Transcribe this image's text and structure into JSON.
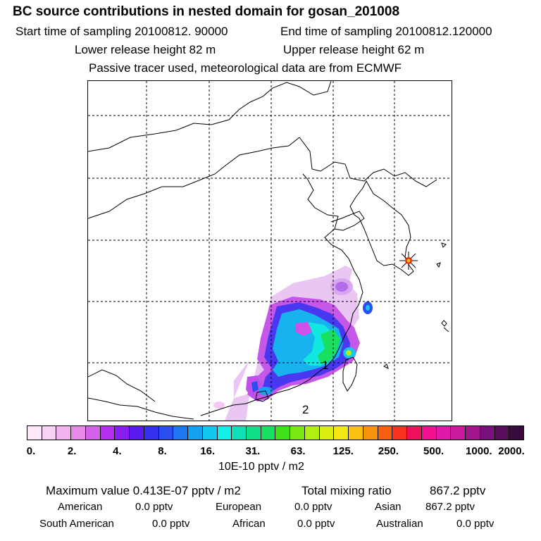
{
  "header": {
    "title": "BC  source contributions in nested domain for gosan_201008",
    "start_time": "Start time of sampling 20100812. 90000",
    "end_time": "End time of sampling 20100812.120000",
    "lower_height": "Lower release height   82 m",
    "upper_height": "Upper release height   62 m",
    "tracer_note": "Passive tracer used, meteorological data are from ECMWF"
  },
  "map": {
    "label_1": "1",
    "label_2": "2",
    "receptor_marker": "star-marker-icon"
  },
  "colorbar": {
    "colors": [
      "#fde8fb",
      "#f8d1f6",
      "#f3b3f0",
      "#e78ae9",
      "#d462e8",
      "#b62fee",
      "#8a1ef0",
      "#5a1aef",
      "#3530f0",
      "#2a4fee",
      "#1e77f2",
      "#16a0f0",
      "#12c8ef",
      "#12f0e8",
      "#10e0b8",
      "#10e08a",
      "#18e060",
      "#40e018",
      "#7ae812",
      "#b0ef10",
      "#d8ef10",
      "#f0e810",
      "#f8c010",
      "#f89410",
      "#f86010",
      "#f83020",
      "#f01060",
      "#f01090",
      "#e018a8",
      "#c81a9c",
      "#a0168c",
      "#7a107a",
      "#580e5a",
      "#3a0a3e"
    ],
    "ticks": [
      "0.",
      "2.",
      "4.",
      "8.",
      "16.",
      "31.",
      "63.",
      "125.",
      "250.",
      "500.",
      "1000.",
      "2000."
    ],
    "unit_label": "10E-10 pptv / m2"
  },
  "stats": {
    "max_label": "Maximum value  0.413E-07 pptv / m2",
    "total_label": "Total mixing ratio",
    "total_value": "867.2 pptv"
  },
  "contributions": [
    {
      "name": "American",
      "value": "0.0 pptv"
    },
    {
      "name": "European",
      "value": "0.0 pptv"
    },
    {
      "name": "Asian",
      "value": "867.2 pptv"
    },
    {
      "name": "South American",
      "value": "0.0 pptv"
    },
    {
      "name": "African",
      "value": "0.0 pptv"
    },
    {
      "name": "Australian",
      "value": "0.0 pptv"
    }
  ]
}
